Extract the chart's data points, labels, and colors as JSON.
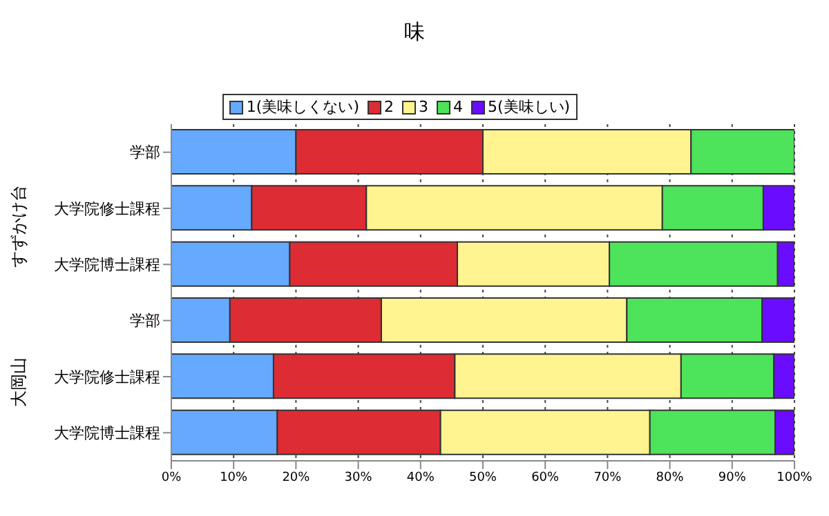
{
  "chart_data": {
    "type": "bar",
    "orientation": "horizontal",
    "stacked": true,
    "title": "味",
    "categories": [
      "学部",
      "大学院修士課程",
      "大学院博士課程",
      "学部",
      "大学院修士課程",
      "大学院博士課程"
    ],
    "series": [
      {
        "name": "1(美味しくない)",
        "color": "#66aaff",
        "values": [
          20.0,
          12.9,
          19.0,
          9.4,
          16.4,
          17.0
        ]
      },
      {
        "name": "2",
        "color": "#dd2c33",
        "values": [
          30.0,
          18.4,
          26.9,
          24.3,
          29.1,
          26.2
        ]
      },
      {
        "name": "3",
        "color": "#fff48f",
        "values": [
          33.4,
          47.5,
          24.4,
          39.4,
          36.3,
          33.6
        ]
      },
      {
        "name": "4",
        "color": "#4de35a",
        "values": [
          16.6,
          16.2,
          27.0,
          21.7,
          14.9,
          20.1
        ]
      },
      {
        "name": "5(美味しい)",
        "color": "#6a0cff",
        "values": [
          0,
          5.0,
          2.7,
          5.2,
          3.3,
          3.1
        ]
      }
    ],
    "xlim": [
      0,
      100
    ],
    "xticks": [
      {
        "value": 0,
        "label": "0%"
      },
      {
        "value": 10,
        "label": "10%"
      },
      {
        "value": 20,
        "label": "20%"
      },
      {
        "value": 30,
        "label": "30%"
      },
      {
        "value": 40,
        "label": "40%"
      },
      {
        "value": 50,
        "label": "50%"
      },
      {
        "value": 60,
        "label": "60%"
      },
      {
        "value": 70,
        "label": "70%"
      },
      {
        "value": 80,
        "label": "80%"
      },
      {
        "value": 90,
        "label": "90%"
      },
      {
        "value": 100,
        "label": "100%"
      }
    ],
    "annotations": [
      "すずかけ台",
      "大岡山"
    ],
    "grid": "x",
    "legend": "top"
  }
}
